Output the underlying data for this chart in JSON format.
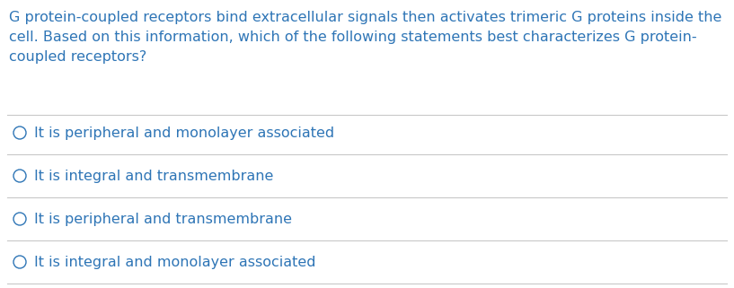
{
  "background_color": "#ffffff",
  "text_color": "#2e75b6",
  "line_color": "#c8c8c8",
  "question_text": "G protein-coupled receptors bind extracellular signals then activates trimeric G proteins inside the\ncell. Based on this information, which of the following statements best characterizes G protein-\ncoupled receptors?",
  "options": [
    "It is peripheral and monolayer associated",
    "It is integral and transmembrane",
    "It is peripheral and transmembrane",
    "It is integral and monolayer associated"
  ],
  "font_size_question": 11.5,
  "font_size_options": 11.5,
  "figsize": [
    8.17,
    3.21
  ],
  "dpi": 100
}
